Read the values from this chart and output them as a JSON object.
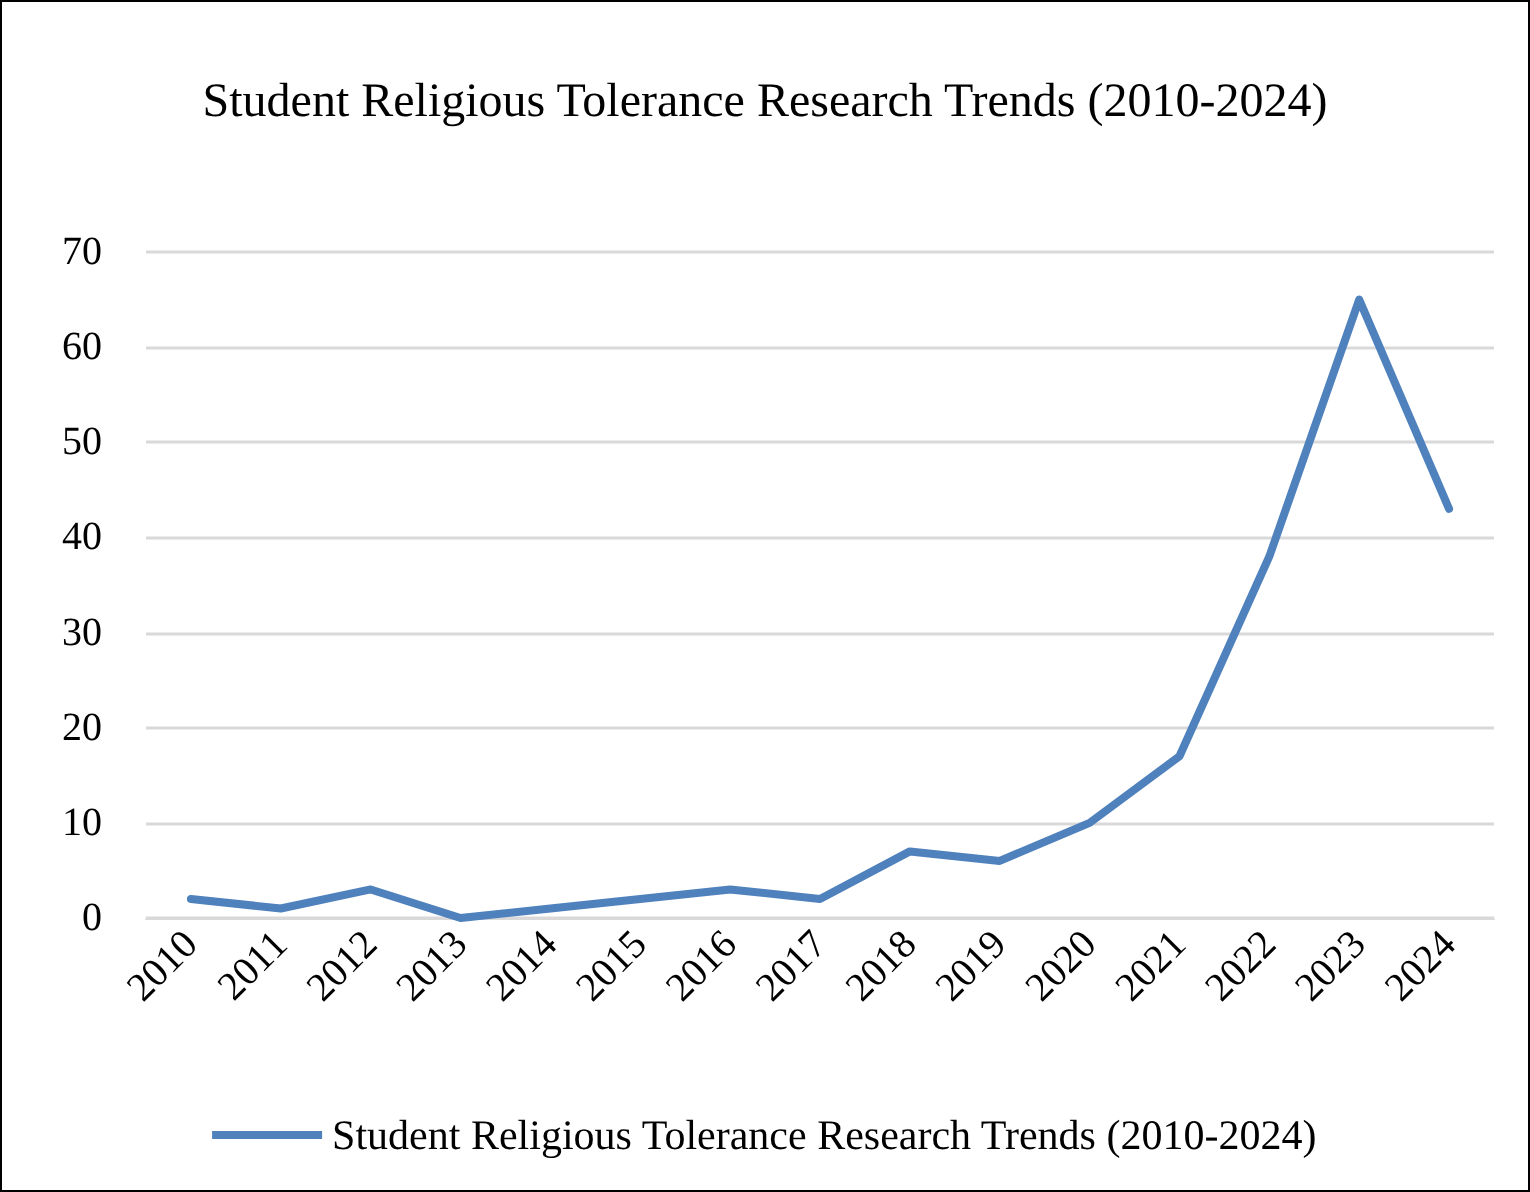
{
  "chart_data": {
    "type": "line",
    "title": "Student Religious Tolerance Research Trends (2010-2024)",
    "categories": [
      "2010",
      "2011",
      "2012",
      "2013",
      "2014",
      "2015",
      "2016",
      "2017",
      "2018",
      "2019",
      "2020",
      "2021",
      "2022",
      "2023",
      "2024"
    ],
    "series": [
      {
        "name": "Student Religious Tolerance Research Trends (2010-2024)",
        "color": "#4f81bd",
        "values": [
          2,
          1,
          3,
          0,
          1,
          2,
          3,
          2,
          7,
          6,
          10,
          17,
          38,
          65,
          43
        ]
      }
    ],
    "ylim": [
      0,
      70
    ],
    "yticks": [
      0,
      10,
      20,
      30,
      40,
      50,
      60,
      70
    ],
    "grid": "y",
    "legend": "bottom",
    "marker": "none",
    "line_style": "solid"
  }
}
